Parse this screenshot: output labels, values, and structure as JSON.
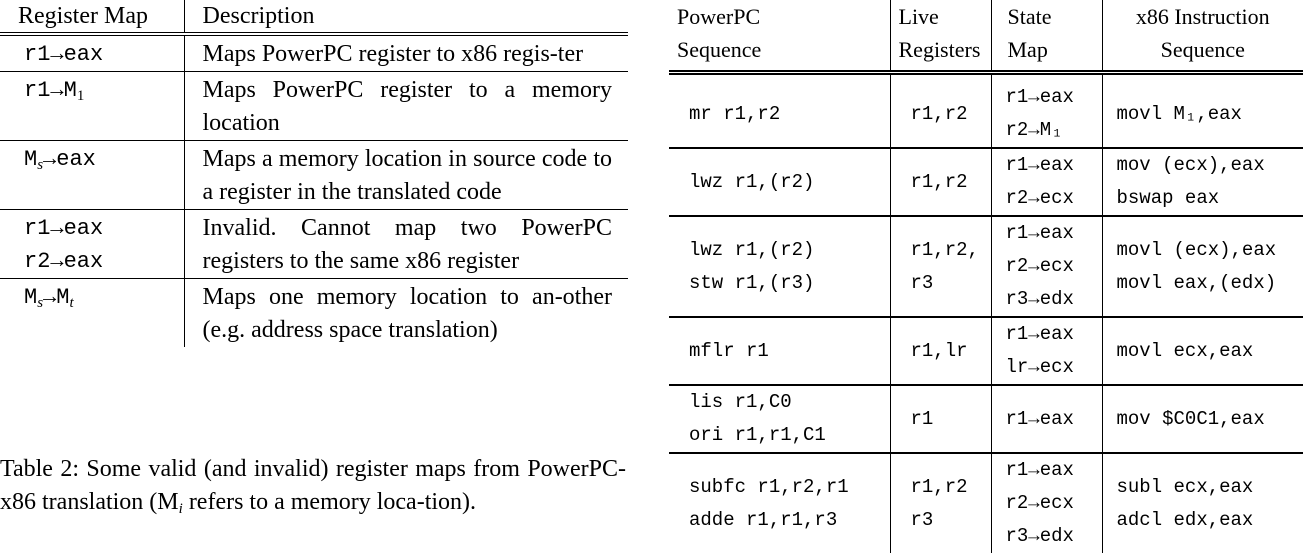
{
  "left_table": {
    "headers": [
      "Register Map",
      "Description"
    ],
    "rows": [
      {
        "map": [
          {
            "base": "r1→eax",
            "sub": ""
          }
        ],
        "description": "Maps PowerPC register to x86 regis-ter"
      },
      {
        "map": [
          {
            "base": "r1→M",
            "sub": "1"
          }
        ],
        "description": "Maps PowerPC register to a memory location"
      },
      {
        "map": [
          {
            "base": "M",
            "sub": "s",
            "rest": "→eax"
          }
        ],
        "description": "Maps a memory location in source code to a register in the translated code"
      },
      {
        "map": [
          {
            "base": "r1→eax",
            "sub": ""
          },
          {
            "base": "r2→eax",
            "sub": ""
          }
        ],
        "description": "Invalid.  Cannot map two PowerPC registers to the same x86 register"
      },
      {
        "map": [
          {
            "base": "M",
            "sub": "s",
            "rest": "→M",
            "sub2": "t"
          }
        ],
        "description": "Maps one memory location to an-other (e.g. address space translation)"
      }
    ]
  },
  "caption": {
    "text_before": "Table 2:  Some valid (and invalid) register maps from PowerPC-x86 translation (M",
    "sub": "i",
    "text_after": " refers to a memory loca-tion)."
  },
  "right_table": {
    "headers": [
      {
        "line1": "PowerPC",
        "line2": "Sequence"
      },
      {
        "line1": "Live",
        "line2": "Registers"
      },
      {
        "line1": "State",
        "line2": "Map"
      },
      {
        "line1": "x86 Instruction",
        "line2": "Sequence"
      }
    ],
    "rows": [
      {
        "ppc": [
          "mr r1,r2"
        ],
        "live": [
          "r1,r2"
        ],
        "state": [
          "r1→eax",
          "r2→M₁"
        ],
        "x86": [
          "movl M₁,eax"
        ]
      },
      {
        "ppc": [
          "lwz r1,(r2)"
        ],
        "live": [
          "r1,r2"
        ],
        "state": [
          "r1→eax",
          "r2→ecx"
        ],
        "x86": [
          "mov (ecx),eax",
          "bswap eax"
        ]
      },
      {
        "ppc": [
          "lwz r1,(r2)",
          "stw r1,(r3)"
        ],
        "live": [
          "r1,r2,",
          "r3"
        ],
        "state": [
          "r1→eax",
          "r2→ecx",
          "r3→edx"
        ],
        "x86": [
          "movl (ecx),eax",
          "movl eax,(edx)"
        ]
      },
      {
        "ppc": [
          "mflr r1"
        ],
        "live": [
          "r1,lr"
        ],
        "state": [
          "r1→eax",
          "lr→ecx"
        ],
        "x86": [
          "movl ecx,eax"
        ]
      },
      {
        "ppc": [
          "lis r1,C0",
          "ori r1,r1,C1"
        ],
        "live": [
          "r1"
        ],
        "state": [
          "r1→eax"
        ],
        "x86": [
          "mov $C0C1,eax"
        ]
      },
      {
        "ppc": [
          "subfc r1,r2,r1",
          "adde r1,r1,r3"
        ],
        "live": [
          "r1,r2",
          "r3"
        ],
        "state": [
          "r1→eax",
          "r2→ecx",
          "r3→edx"
        ],
        "x86": [
          "subl ecx,eax",
          "adcl edx,eax"
        ]
      }
    ]
  }
}
